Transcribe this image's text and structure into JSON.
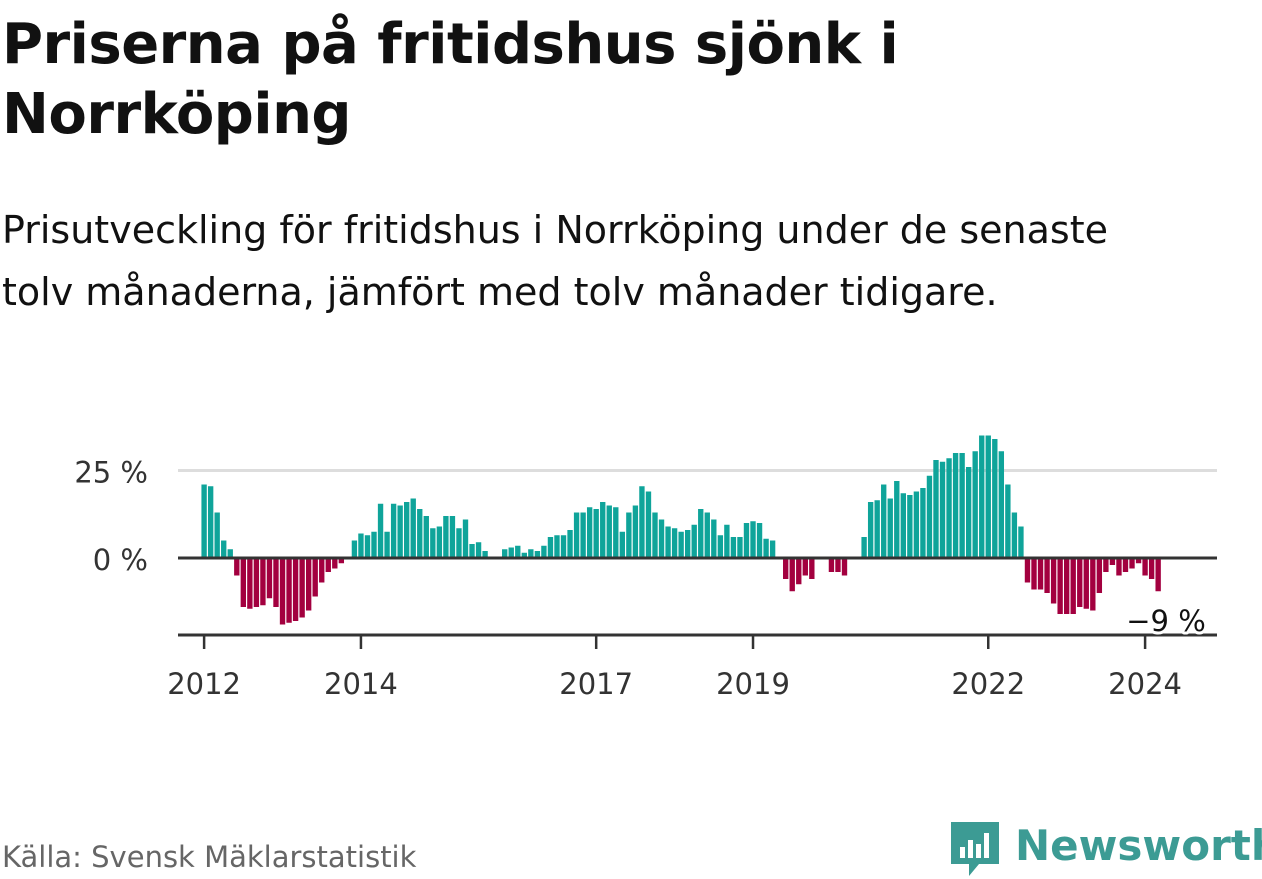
{
  "title": "Priserna på fritidshus sjönk i Norrköping",
  "subtitle": "Prisutveckling för fritidshus i Norrköping under de senaste tolv månaderna, jämfört med tolv månader tidigare.",
  "source": "Källa: Svensk Mäklarstatistik",
  "brand": {
    "name": "Newsworthy",
    "icon": "newsworthy-logo-icon",
    "color": "#3c9b94"
  },
  "colors": {
    "positive": "#0fa49a",
    "negative": "#a3003f",
    "grid": "#dddddd",
    "axis": "#333333"
  },
  "chart_data": {
    "type": "bar",
    "title": "Priserna på fritidshus sjönk i Norrköping",
    "xlabel": "",
    "ylabel": "",
    "x_range": [
      2011.667,
      2024.917
    ],
    "ylim": [
      -22,
      37
    ],
    "yticks": [
      0,
      25
    ],
    "ytick_labels": [
      "0 %",
      "25 %"
    ],
    "xticks": [
      2012,
      2014,
      2017,
      2019,
      2022,
      2024
    ],
    "xtick_labels": [
      "2012",
      "2014",
      "2017",
      "2019",
      "2022",
      "2024"
    ],
    "grid": true,
    "start": {
      "year": 2012,
      "month": 1
    },
    "values": [
      21,
      20.5,
      13,
      5,
      2.5,
      -5,
      -14,
      -14.5,
      -14,
      -13.5,
      -11.5,
      -14,
      -19,
      -18.5,
      -18,
      -17,
      -15,
      -11,
      -7,
      -4,
      -3,
      -1.5,
      null,
      5,
      7,
      6.5,
      7.5,
      15.5,
      7.5,
      15.5,
      15,
      16,
      17,
      14,
      12,
      8.5,
      9,
      12,
      12,
      8.5,
      11,
      4,
      4.5,
      2,
      null,
      null,
      2.5,
      3,
      3.5,
      1.5,
      2.5,
      2,
      3.5,
      6,
      6.5,
      6.5,
      8,
      13,
      13,
      14.5,
      14,
      16,
      15,
      14.5,
      7.5,
      13,
      15,
      20.5,
      19,
      13,
      11,
      9,
      8.5,
      7.5,
      8,
      9.5,
      14,
      13,
      11,
      6.5,
      9.5,
      6,
      6,
      10,
      10.5,
      10,
      5.5,
      5,
      null,
      -6,
      -9.5,
      -7.5,
      -5,
      -6,
      null,
      null,
      -4,
      -4,
      -5,
      null,
      null,
      6,
      16,
      16.5,
      21,
      17,
      22,
      18.5,
      18,
      19,
      20,
      23.5,
      28,
      27.5,
      28.5,
      30,
      30,
      26,
      30.5,
      35,
      35,
      34,
      30.5,
      21,
      13,
      9,
      -7,
      -9,
      -9,
      -10,
      -13,
      -16,
      -16,
      -16,
      -14,
      -14.5,
      -15,
      -10,
      -4,
      -2,
      -5,
      -4,
      -3,
      -1.5,
      -5,
      -6,
      -9.5
    ],
    "annotation": {
      "label": "−9 %",
      "value": -9
    }
  }
}
